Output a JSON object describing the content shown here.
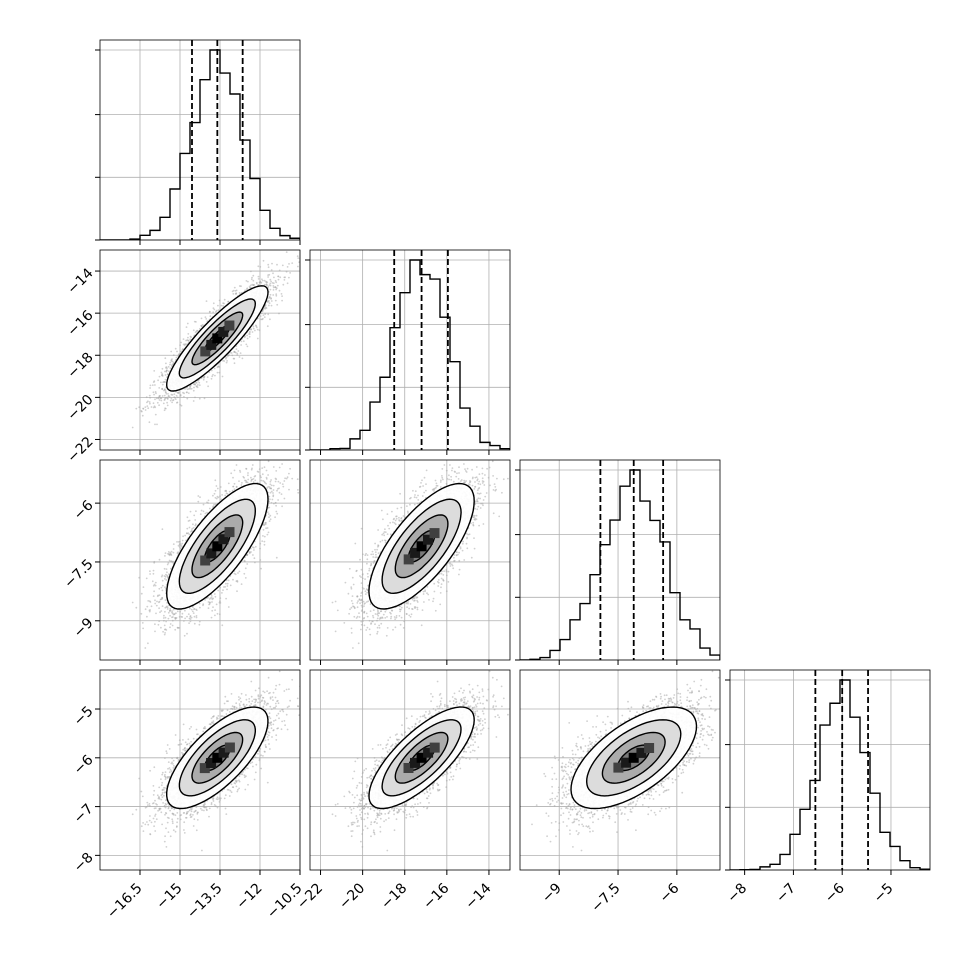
{
  "chart_data": {
    "type": "corner",
    "grid": true,
    "parameters": [
      {
        "mean": -13.6,
        "std": 0.95,
        "range": [
          -18.0,
          -10.5
        ],
        "ticks": [
          -16.5,
          -15.0,
          -13.5,
          -12.0,
          -10.5
        ],
        "quantiles": [
          -14.55,
          -13.6,
          -12.65
        ]
      },
      {
        "mean": -17.2,
        "std": 1.25,
        "range": [
          -22.5,
          -13.0
        ],
        "ticks": [
          -22,
          -20,
          -18,
          -16,
          -14
        ],
        "quantiles": [
          -18.5,
          -17.2,
          -15.95
        ]
      },
      {
        "mean": -7.1,
        "std": 0.8,
        "range": [
          -10.0,
          -4.9
        ],
        "ticks": [
          -9.0,
          -7.5,
          -6.0
        ],
        "quantiles": [
          -7.95,
          -7.1,
          -6.35
        ]
      },
      {
        "mean": -6.0,
        "std": 0.52,
        "range": [
          -8.3,
          -4.2
        ],
        "ticks": [
          -8,
          -7,
          -6,
          -5
        ],
        "quantiles": [
          -6.55,
          -6.0,
          -5.47
        ]
      }
    ],
    "correlations": [
      [
        1.0,
        0.88,
        0.75,
        0.72
      ],
      [
        0.88,
        1.0,
        0.72,
        0.75
      ],
      [
        0.75,
        0.72,
        1.0,
        0.62
      ],
      [
        0.72,
        0.75,
        0.62,
        1.0
      ]
    ],
    "diag_yticks_fraction": [
      0.0,
      0.33,
      0.66,
      1.0
    ],
    "bins": 20,
    "contour_levels_sigma": [
      0.5,
      1.0,
      1.5,
      2.0
    ],
    "n_samples": 4000
  }
}
